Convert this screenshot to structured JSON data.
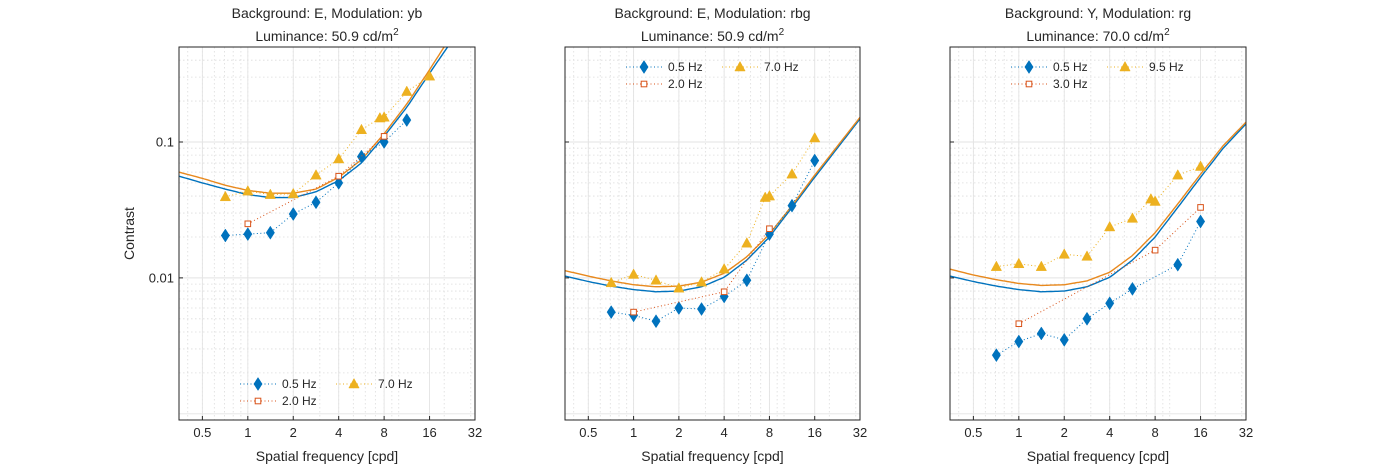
{
  "colors": {
    "blue": "#0072BD",
    "orange": "#D95319",
    "yellow": "#EDB120",
    "fit_orange": "#E8891E"
  },
  "chart_data": [
    {
      "type": "line",
      "title": "Background: E, Modulation: yb",
      "title2_prefix": "Luminance: 50.9 cd/m",
      "title2_sup": "2",
      "xlabel": "Spatial frequency [cpd]",
      "ylabel": "Contrast",
      "xscale": "log",
      "yscale": "log",
      "xlim": [
        0.35,
        32
      ],
      "ylim": [
        0.0009,
        0.5
      ],
      "xticks": [
        0.5,
        1,
        2,
        4,
        8,
        16,
        32
      ],
      "xticklabels": [
        "0.5",
        "1",
        "2",
        "4",
        "8",
        "16",
        "32"
      ],
      "yticks": [
        0.01,
        0.1
      ],
      "yticklabels": [
        "0.01",
        "0.1"
      ],
      "grid": true,
      "legend_location": "bottom-center",
      "series": [
        {
          "name": "0.5 Hz",
          "marker": "diamond",
          "color": "#0072BD",
          "x": [
            0.71,
            1.0,
            1.41,
            2.0,
            2.83,
            4.0,
            5.66,
            8.0,
            11.3
          ],
          "y": [
            0.0205,
            0.021,
            0.0215,
            0.0295,
            0.036,
            0.05,
            0.078,
            0.1,
            0.145
          ]
        },
        {
          "name": "2.0 Hz",
          "marker": "square",
          "color": "#D95319",
          "x": [
            1.0,
            4.0,
            8.0
          ],
          "y": [
            0.025,
            0.056,
            0.11
          ]
        },
        {
          "name": "7.0 Hz",
          "marker": "triangle",
          "color": "#EDB120",
          "x": [
            0.71,
            1.0,
            1.41,
            2.0,
            2.83,
            4.0,
            5.66,
            7.5,
            8.0,
            11.3,
            16.0
          ],
          "y": [
            0.0395,
            0.0435,
            0.041,
            0.0415,
            0.057,
            0.075,
            0.123,
            0.15,
            0.152,
            0.235,
            0.305
          ]
        }
      ],
      "fits": [
        {
          "color": "#0072BD",
          "x": [
            0.35,
            0.5,
            0.71,
            1.0,
            1.41,
            2.0,
            2.83,
            4.0,
            5.66,
            8.0,
            11.3,
            16.0,
            20.0
          ],
          "y": [
            0.056,
            0.05,
            0.045,
            0.041,
            0.039,
            0.039,
            0.043,
            0.052,
            0.07,
            0.11,
            0.18,
            0.32,
            0.46
          ]
        },
        {
          "color": "#E8891E",
          "x": [
            0.35,
            0.5,
            0.71,
            1.0,
            1.41,
            2.0,
            2.83,
            4.0,
            5.66,
            8.0,
            11.3,
            16.0,
            19.5
          ],
          "y": [
            0.06,
            0.054,
            0.048,
            0.044,
            0.042,
            0.042,
            0.045,
            0.055,
            0.074,
            0.115,
            0.19,
            0.34,
            0.48
          ]
        }
      ]
    },
    {
      "type": "line",
      "title": "Background: E, Modulation: rbg",
      "title2_prefix": "Luminance: 50.9 cd/m",
      "title2_sup": "2",
      "xlabel": "Spatial frequency [cpd]",
      "ylabel": "",
      "xscale": "log",
      "yscale": "log",
      "xlim": [
        0.35,
        32
      ],
      "ylim": [
        0.0009,
        0.5
      ],
      "xticks": [
        0.5,
        1,
        2,
        4,
        8,
        16,
        32
      ],
      "xticklabels": [
        "0.5",
        "1",
        "2",
        "4",
        "8",
        "16",
        "32"
      ],
      "yticks": [
        0.01,
        0.1
      ],
      "yticklabels": [],
      "grid": true,
      "legend_location": "top-center",
      "series": [
        {
          "name": "0.5 Hz",
          "marker": "diamond",
          "color": "#0072BD",
          "x": [
            0.71,
            1.0,
            1.41,
            2.0,
            2.83,
            4.0,
            5.66,
            8.0,
            11.3,
            16.0
          ],
          "y": [
            0.0056,
            0.0053,
            0.0048,
            0.006,
            0.0059,
            0.0073,
            0.0096,
            0.021,
            0.034,
            0.073
          ]
        },
        {
          "name": "2.0 Hz",
          "marker": "square",
          "color": "#D95319",
          "x": [
            1.0,
            4.0,
            8.0
          ],
          "y": [
            0.0056,
            0.0079,
            0.023
          ]
        },
        {
          "name": "7.0 Hz",
          "marker": "triangle",
          "color": "#EDB120",
          "x": [
            0.71,
            1.0,
            1.41,
            2.0,
            2.83,
            4.0,
            5.66,
            7.5,
            8.0,
            11.3,
            16.0
          ],
          "y": [
            0.0092,
            0.0106,
            0.0096,
            0.0084,
            0.0093,
            0.0116,
            0.018,
            0.039,
            0.04,
            0.058,
            0.107
          ]
        }
      ],
      "fits": [
        {
          "color": "#0072BD",
          "x": [
            0.35,
            0.5,
            0.71,
            1.0,
            1.41,
            2.0,
            2.83,
            4.0,
            5.66,
            8.0,
            11.3,
            16.0,
            22.6,
            32.0
          ],
          "y": [
            0.0103,
            0.0094,
            0.0087,
            0.0082,
            0.0079,
            0.008,
            0.0086,
            0.0101,
            0.0135,
            0.02,
            0.033,
            0.055,
            0.09,
            0.148
          ]
        },
        {
          "color": "#E8891E",
          "x": [
            0.35,
            0.5,
            0.71,
            1.0,
            1.41,
            2.0,
            2.83,
            4.0,
            5.66,
            8.0,
            11.3,
            16.0,
            22.6,
            32.0
          ],
          "y": [
            0.0113,
            0.0103,
            0.0095,
            0.0089,
            0.0086,
            0.0087,
            0.0093,
            0.0108,
            0.0143,
            0.021,
            0.034,
            0.057,
            0.093,
            0.152
          ]
        }
      ]
    },
    {
      "type": "line",
      "title": "Background: Y, Modulation: rg",
      "title2_prefix": "Luminance: 70.0 cd/m",
      "title2_sup": "2",
      "xlabel": "Spatial frequency [cpd]",
      "ylabel": "",
      "xscale": "log",
      "yscale": "log",
      "xlim": [
        0.35,
        32
      ],
      "ylim": [
        0.0009,
        0.5
      ],
      "xticks": [
        0.5,
        1,
        2,
        4,
        8,
        16,
        32
      ],
      "xticklabels": [
        "0.5",
        "1",
        "2",
        "4",
        "8",
        "16",
        "32"
      ],
      "yticks": [
        0.01,
        0.1
      ],
      "yticklabels": [],
      "grid": true,
      "legend_location": "top-center",
      "series": [
        {
          "name": "0.5 Hz",
          "marker": "diamond",
          "color": "#0072BD",
          "x": [
            0.71,
            1.0,
            1.41,
            2.0,
            2.83,
            4.0,
            5.66,
            11.3,
            16.0
          ],
          "y": [
            0.0027,
            0.0034,
            0.0039,
            0.0035,
            0.005,
            0.0065,
            0.0083,
            0.0125,
            0.026
          ]
        },
        {
          "name": "3.0 Hz",
          "marker": "square",
          "color": "#D95319",
          "x": [
            1.0,
            8.0,
            16.0
          ],
          "y": [
            0.0046,
            0.016,
            0.033
          ]
        },
        {
          "name": "9.5 Hz",
          "marker": "triangle",
          "color": "#EDB120",
          "x": [
            0.71,
            1.0,
            1.41,
            2.0,
            2.83,
            4.0,
            5.66,
            7.5,
            8.0,
            11.3,
            16.0
          ],
          "y": [
            0.0121,
            0.0127,
            0.0121,
            0.0149,
            0.0144,
            0.0237,
            0.0274,
            0.038,
            0.0365,
            0.057,
            0.066
          ]
        }
      ],
      "fits": [
        {
          "color": "#0072BD",
          "x": [
            0.35,
            0.5,
            0.71,
            1.0,
            1.41,
            2.0,
            2.83,
            4.0,
            5.66,
            8.0,
            11.3,
            16.0,
            22.6,
            32.0
          ],
          "y": [
            0.0103,
            0.0094,
            0.0087,
            0.0082,
            0.0079,
            0.008,
            0.0086,
            0.0101,
            0.0135,
            0.02,
            0.033,
            0.055,
            0.09,
            0.136
          ]
        },
        {
          "color": "#E8891E",
          "x": [
            0.35,
            0.5,
            0.71,
            1.0,
            1.41,
            2.0,
            2.83,
            4.0,
            5.66,
            8.0,
            11.3,
            16.0,
            22.6,
            32.0
          ],
          "y": [
            0.0116,
            0.0105,
            0.0097,
            0.0091,
            0.0088,
            0.0089,
            0.0095,
            0.011,
            0.0146,
            0.0215,
            0.035,
            0.058,
            0.094,
            0.14
          ]
        }
      ]
    }
  ]
}
